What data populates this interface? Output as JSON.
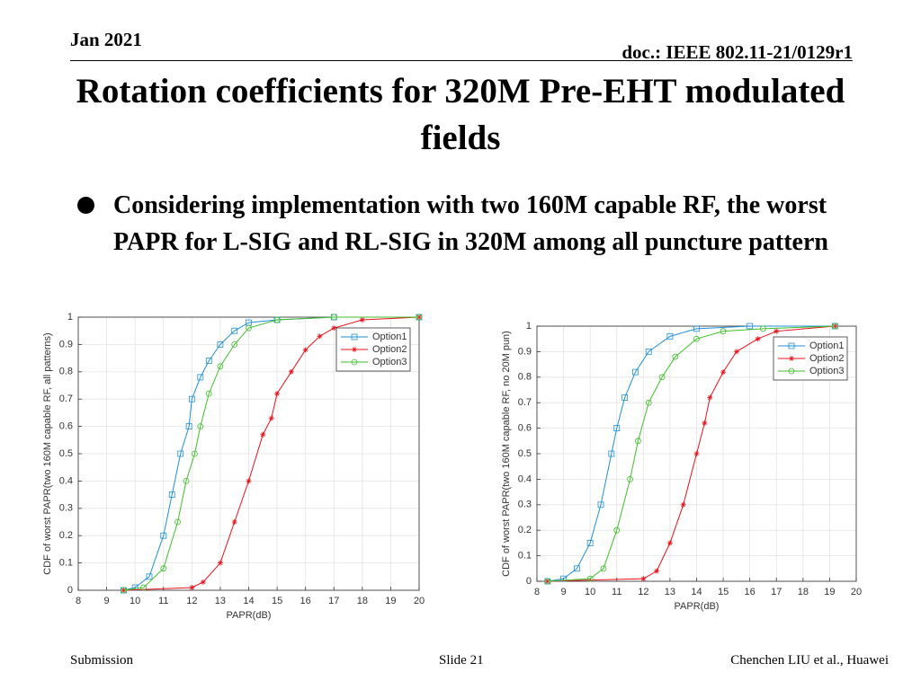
{
  "header": {
    "date": "Jan 2021",
    "doc": "doc.: IEEE 802.11-21/0129r1",
    "title": "Rotation coefficients for 320M Pre-EHT modulated fields"
  },
  "bullet": "Considering implementation with two 160M capable RF, the worst PAPR for L-SIG and RL-SIG in 320M among all puncture pattern",
  "footer": {
    "left": "Submission",
    "center": "Slide 21",
    "right": "Chenchen LIU et al., Huawei"
  },
  "chart_data": [
    {
      "type": "line",
      "x_label": "PAPR(dB)",
      "y_label": "CDF of worst PAPR(two 160M capable RF, all patterns)",
      "xlim": [
        8,
        20
      ],
      "ylim": [
        0,
        1
      ],
      "xticks": [
        8,
        9,
        10,
        11,
        12,
        13,
        14,
        15,
        16,
        17,
        18,
        19,
        20
      ],
      "yticks": [
        0,
        0.1,
        0.2,
        0.3,
        0.4,
        0.5,
        0.6,
        0.7,
        0.8,
        0.9,
        1
      ],
      "grid": true,
      "legend": "northeast",
      "series": [
        {
          "name": "Option1",
          "color": "#1f8fd6",
          "marker": "square",
          "x": [
            9.6,
            10,
            10.5,
            11,
            11.3,
            11.6,
            11.9,
            12,
            12.3,
            12.6,
            13,
            13.5,
            14,
            15,
            17,
            20
          ],
          "values": [
            0,
            0.01,
            0.05,
            0.2,
            0.35,
            0.5,
            0.6,
            0.7,
            0.78,
            0.84,
            0.9,
            0.95,
            0.98,
            0.99,
            1,
            1
          ]
        },
        {
          "name": "Option2",
          "color": "#e8101a",
          "marker": "star",
          "x": [
            9.6,
            12,
            12.4,
            13,
            13.5,
            14,
            14.5,
            14.8,
            15,
            15.5,
            16,
            16.5,
            17,
            18,
            20
          ],
          "values": [
            0,
            0.01,
            0.03,
            0.1,
            0.25,
            0.4,
            0.57,
            0.63,
            0.72,
            0.8,
            0.88,
            0.93,
            0.96,
            0.99,
            1
          ]
        },
        {
          "name": "Option3",
          "color": "#3fbf2a",
          "marker": "circle",
          "x": [
            9.6,
            10.3,
            11,
            11.5,
            11.8,
            12.1,
            12.3,
            12.6,
            13,
            13.5,
            14,
            15,
            17,
            20
          ],
          "values": [
            0,
            0.01,
            0.08,
            0.25,
            0.4,
            0.5,
            0.6,
            0.72,
            0.82,
            0.9,
            0.96,
            0.99,
            1,
            1
          ]
        }
      ]
    },
    {
      "type": "line",
      "x_label": "PAPR(dB)",
      "y_label": "CDF of worst PAPR(two 160M capable RF, no 20M pun)",
      "xlim": [
        8,
        20
      ],
      "ylim": [
        0,
        1
      ],
      "xticks": [
        8,
        9,
        10,
        11,
        12,
        13,
        14,
        15,
        16,
        17,
        18,
        19,
        20
      ],
      "yticks": [
        0,
        0.1,
        0.2,
        0.3,
        0.4,
        0.5,
        0.6,
        0.7,
        0.8,
        0.9,
        1
      ],
      "grid": true,
      "legend": "northeast",
      "series": [
        {
          "name": "Option1",
          "color": "#1f8fd6",
          "marker": "square",
          "x": [
            8.4,
            9,
            9.5,
            10,
            10.4,
            10.8,
            11,
            11.3,
            11.7,
            12.2,
            13,
            14,
            16,
            19.2
          ],
          "values": [
            0,
            0.01,
            0.05,
            0.15,
            0.3,
            0.5,
            0.6,
            0.72,
            0.82,
            0.9,
            0.96,
            0.99,
            1,
            1
          ]
        },
        {
          "name": "Option2",
          "color": "#e8101a",
          "marker": "star",
          "x": [
            8.4,
            12,
            12.5,
            13,
            13.5,
            14,
            14.3,
            14.5,
            15,
            15.5,
            16.3,
            17,
            19.2
          ],
          "values": [
            0,
            0.01,
            0.04,
            0.15,
            0.3,
            0.5,
            0.62,
            0.72,
            0.82,
            0.9,
            0.95,
            0.98,
            1
          ]
        },
        {
          "name": "Option3",
          "color": "#3fbf2a",
          "marker": "circle",
          "x": [
            8.4,
            10,
            10.5,
            11,
            11.5,
            11.8,
            12.2,
            12.7,
            13.2,
            14,
            15,
            16.5,
            19.2
          ],
          "values": [
            0,
            0.01,
            0.05,
            0.2,
            0.4,
            0.55,
            0.7,
            0.8,
            0.88,
            0.95,
            0.98,
            0.99,
            1
          ]
        }
      ]
    }
  ]
}
